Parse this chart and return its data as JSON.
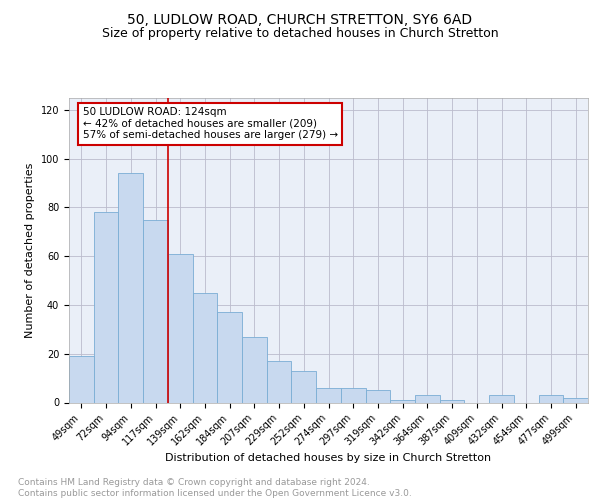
{
  "title": "50, LUDLOW ROAD, CHURCH STRETTON, SY6 6AD",
  "subtitle": "Size of property relative to detached houses in Church Stretton",
  "xlabel": "Distribution of detached houses by size in Church Stretton",
  "ylabel": "Number of detached properties",
  "categories": [
    "49sqm",
    "72sqm",
    "94sqm",
    "117sqm",
    "139sqm",
    "162sqm",
    "184sqm",
    "207sqm",
    "229sqm",
    "252sqm",
    "274sqm",
    "297sqm",
    "319sqm",
    "342sqm",
    "364sqm",
    "387sqm",
    "409sqm",
    "432sqm",
    "454sqm",
    "477sqm",
    "499sqm"
  ],
  "values": [
    19,
    78,
    94,
    75,
    61,
    45,
    37,
    27,
    17,
    13,
    6,
    6,
    5,
    1,
    3,
    1,
    0,
    3,
    0,
    3,
    2
  ],
  "bar_color": "#c8d9ef",
  "bar_edge_color": "#7aadd4",
  "vline_x_index": 3.5,
  "vline_color": "#cc0000",
  "annotation_text": "50 LUDLOW ROAD: 124sqm\n← 42% of detached houses are smaller (209)\n57% of semi-detached houses are larger (279) →",
  "annotation_box_color": "#cc0000",
  "ylim": [
    0,
    125
  ],
  "yticks": [
    0,
    20,
    40,
    60,
    80,
    100,
    120
  ],
  "grid_color": "#bbbbcc",
  "bg_color": "#eaeff8",
  "footer_text": "Contains HM Land Registry data © Crown copyright and database right 2024.\nContains public sector information licensed under the Open Government Licence v3.0.",
  "title_fontsize": 10,
  "subtitle_fontsize": 9,
  "xlabel_fontsize": 8,
  "ylabel_fontsize": 8,
  "tick_fontsize": 7,
  "footer_fontsize": 6.5,
  "ann_fontsize": 7.5
}
